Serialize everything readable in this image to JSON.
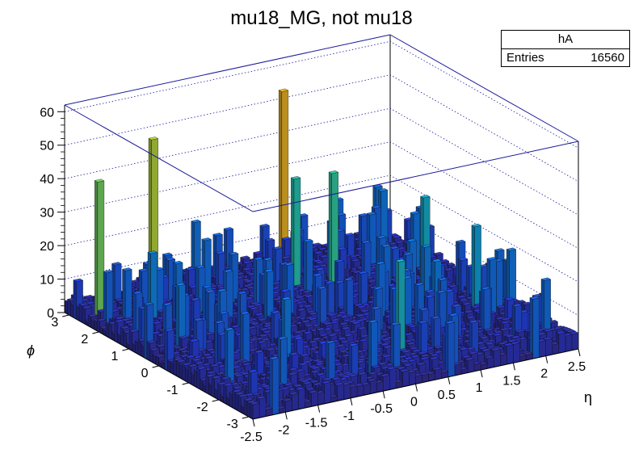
{
  "chart_data": {
    "type": "lego3d",
    "title": "mu18_MG, not mu18",
    "xlabel": "η",
    "ylabel": "ϕ",
    "zlabel": "",
    "xlim": [
      -2.5,
      2.5
    ],
    "ylim": [
      -3.1416,
      3.1416
    ],
    "zlim": [
      0,
      62
    ],
    "x_ticks": [
      "-2.5",
      "-2",
      "-1.5",
      "-1",
      "-0.5",
      "0",
      "0.5",
      "1",
      "1.5",
      "2",
      "2.5"
    ],
    "y_ticks": [
      "-3",
      "-2",
      "-1",
      "0",
      "1",
      "2",
      "3"
    ],
    "z_ticks": [
      "0",
      "10",
      "20",
      "30",
      "40",
      "50",
      "60"
    ],
    "bins": {
      "nx": 50,
      "ny": 64
    },
    "grid": true,
    "baseline_mean": 4,
    "hot_bins": [
      {
        "eta": -2.35,
        "phi": 2.3,
        "value": 43
      },
      {
        "eta": -1.25,
        "phi": 2.9,
        "value": 48
      },
      {
        "eta": 0.75,
        "phi": 2.9,
        "value": 54
      },
      {
        "eta": 0.35,
        "phi": 1.6,
        "value": 36
      },
      {
        "eta": 0.75,
        "phi": 1.2,
        "value": 38
      },
      {
        "eta": 0.1,
        "phi": -2.3,
        "value": 32
      },
      {
        "eta": 1.75,
        "phi": 0.3,
        "value": 31
      },
      {
        "eta": 1.95,
        "phi": -0.9,
        "value": 28
      },
      {
        "eta": -1.9,
        "phi": 1.6,
        "value": 23
      },
      {
        "eta": -1.6,
        "phi": 2.2,
        "value": 16
      }
    ],
    "stats": {
      "name": "hA",
      "entries_label": "Entries",
      "entries": "16560"
    }
  }
}
